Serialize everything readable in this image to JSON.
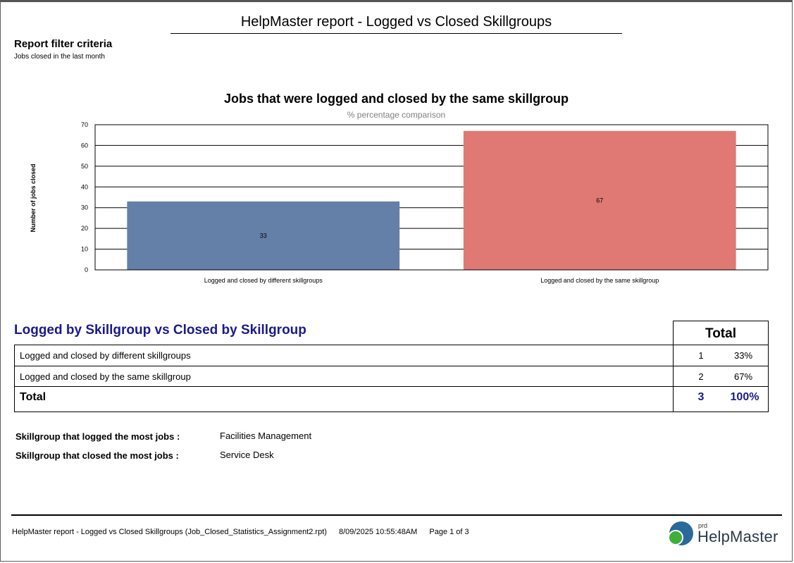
{
  "report": {
    "title": "HelpMaster report - Logged vs Closed Skillgroups",
    "filter_heading": "Report filter criteria",
    "filter_text": "Jobs closed in the last month"
  },
  "chart_data": {
    "type": "bar",
    "title": "Jobs that were logged and closed by the same skillgroup",
    "subtitle": "% percentage comparison",
    "xlabel": "",
    "ylabel": "Number of jobs closed",
    "ylim": [
      0,
      70
    ],
    "yticks": [
      0,
      10,
      20,
      30,
      40,
      50,
      60,
      70
    ],
    "grid": true,
    "categories": [
      "Logged and closed by different skillgroups",
      "Logged and closed by the same skillgroup"
    ],
    "values": [
      33,
      67
    ],
    "colors": [
      "#647fa8",
      "#e07873"
    ]
  },
  "table": {
    "heading": "Logged by Skillgroup vs Closed by Skillgroup",
    "total_header": "Total",
    "rows": [
      {
        "label": "Logged and closed by different skillgroups",
        "count": "1",
        "pct": "33%"
      },
      {
        "label": "Logged and closed by the same skillgroup",
        "count": "2",
        "pct": "67%"
      }
    ],
    "total": {
      "label": "Total",
      "count": "3",
      "pct": "100%"
    }
  },
  "summary": {
    "logged_label": "Skillgroup that logged the most jobs :",
    "logged_value": "Facilities Management",
    "closed_label": "Skillgroup that closed the most jobs :",
    "closed_value": "Service Desk"
  },
  "footer": {
    "report_name": "HelpMaster report - Logged vs Closed Skillgroups  (Job_Closed_Statistics_Assignment2.rpt)",
    "timestamp": "8/09/2025  10:55:48AM",
    "page": "Page 1 of 3"
  },
  "logo": {
    "prefix": "prd",
    "name": "HelpMaster"
  },
  "colors": {
    "heading": "#1a1a8c"
  }
}
